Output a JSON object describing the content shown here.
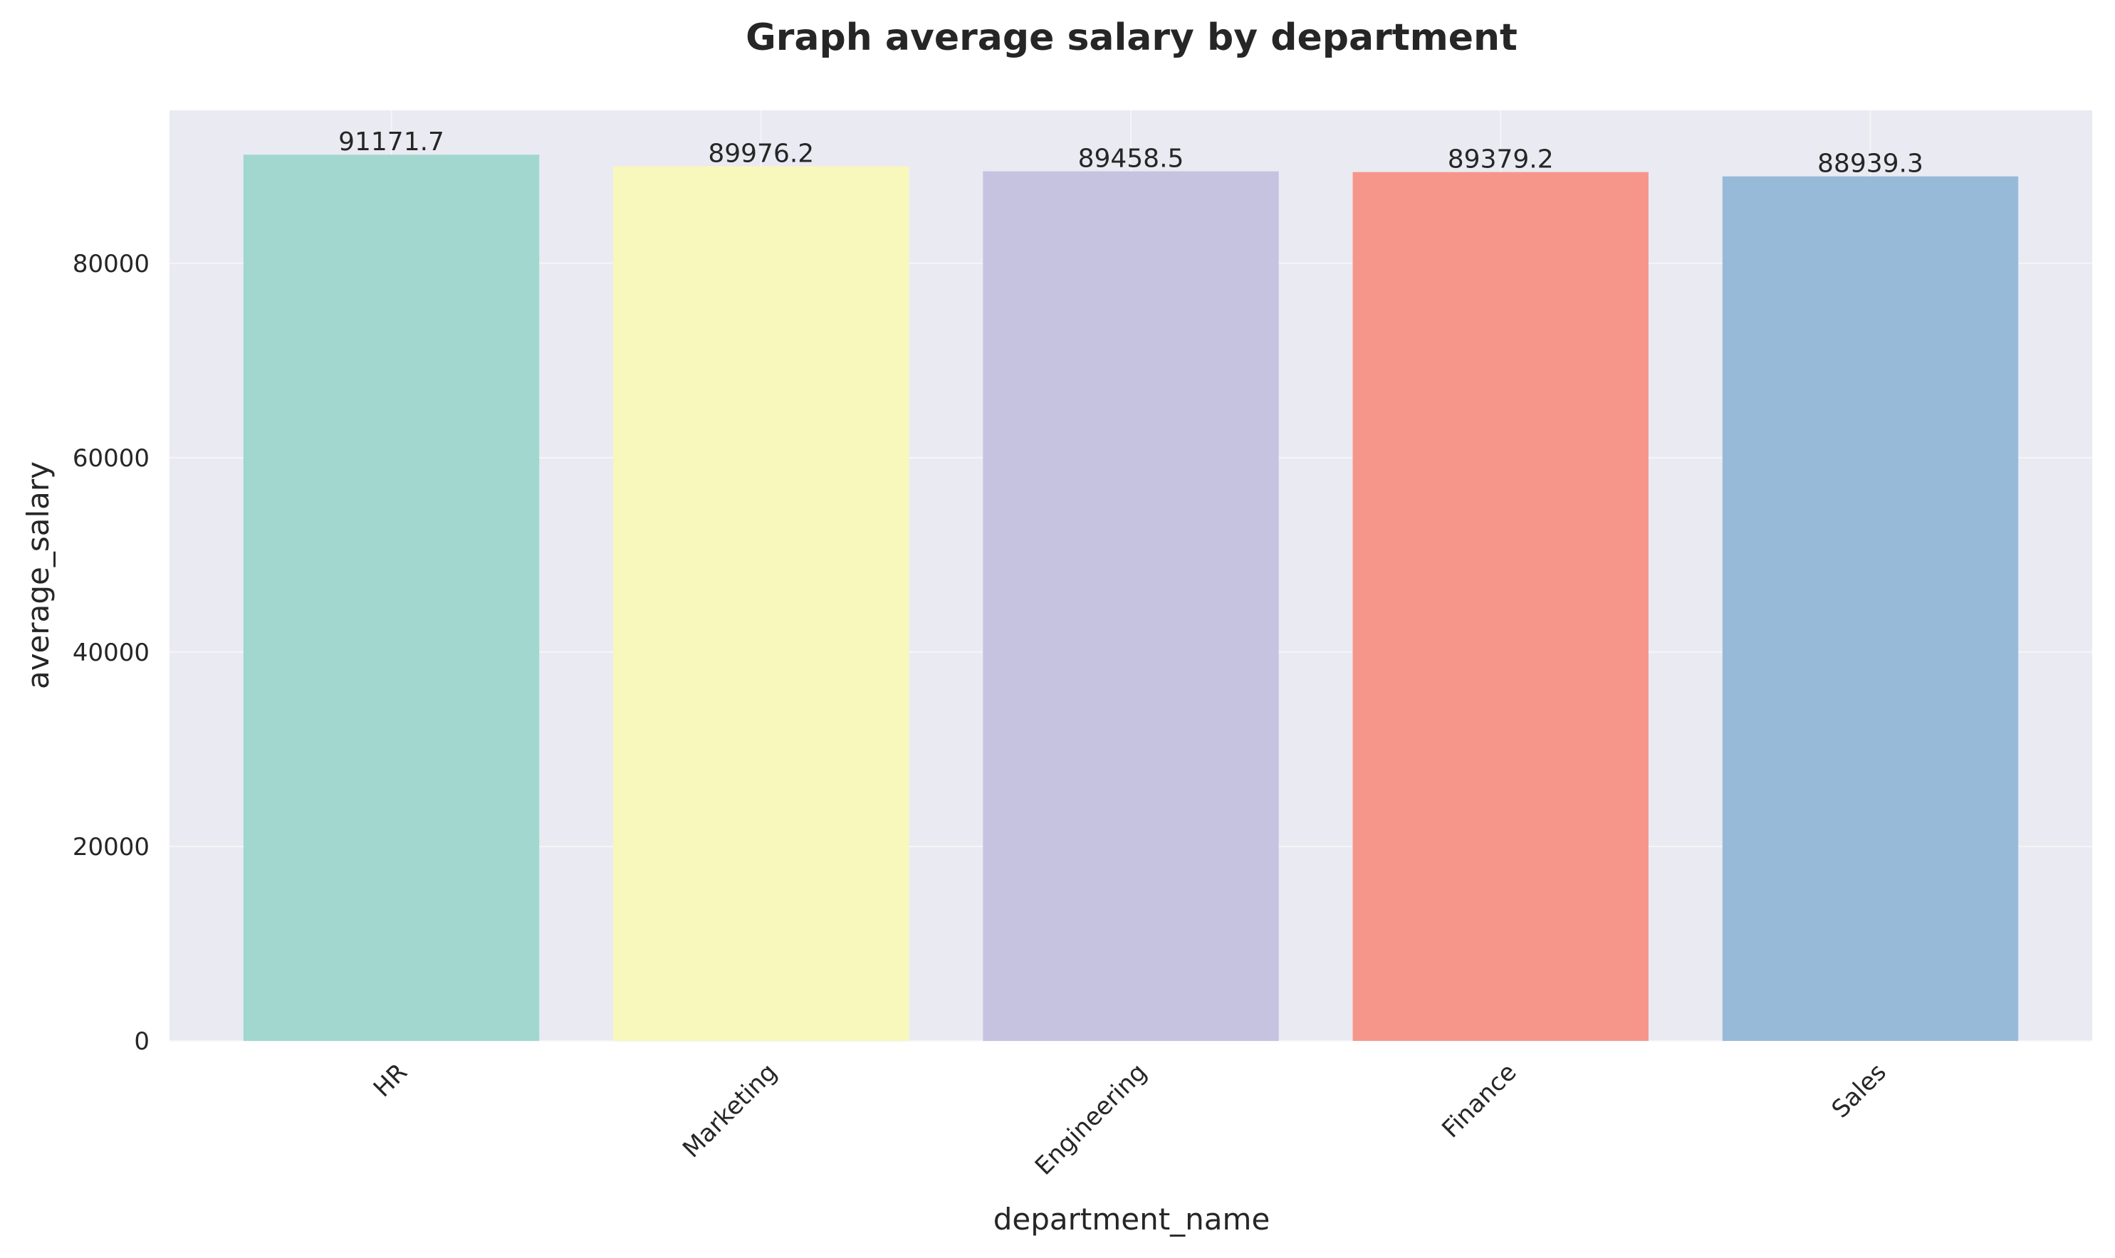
{
  "chart_data": {
    "type": "bar",
    "title": "Graph average salary by department",
    "xlabel": "department_name",
    "ylabel": "average_salary",
    "categories": [
      "HR",
      "Marketing",
      "Engineering",
      "Finance",
      "Sales"
    ],
    "values": [
      91171.7,
      89976.2,
      89458.5,
      89379.2,
      88939.3
    ],
    "data_labels": [
      "91171.7",
      "89976.2",
      "89458.5",
      "89379.2",
      "88939.3"
    ],
    "y_ticks": [
      0,
      20000,
      40000,
      60000,
      80000
    ],
    "y_tick_labels": [
      "0",
      "20000",
      "40000",
      "60000",
      "80000"
    ],
    "ylim": [
      0,
      95730
    ],
    "grid": true,
    "x_tick_rotation_deg": 45,
    "colors": {
      "plot_background": "#eaeaf2",
      "grid": "#f5f5f8",
      "text": "#262626",
      "bars": [
        "#a1d7cf",
        "#f8f8bd",
        "#c5c3df",
        "#f6968b",
        "#98bad9"
      ]
    }
  }
}
